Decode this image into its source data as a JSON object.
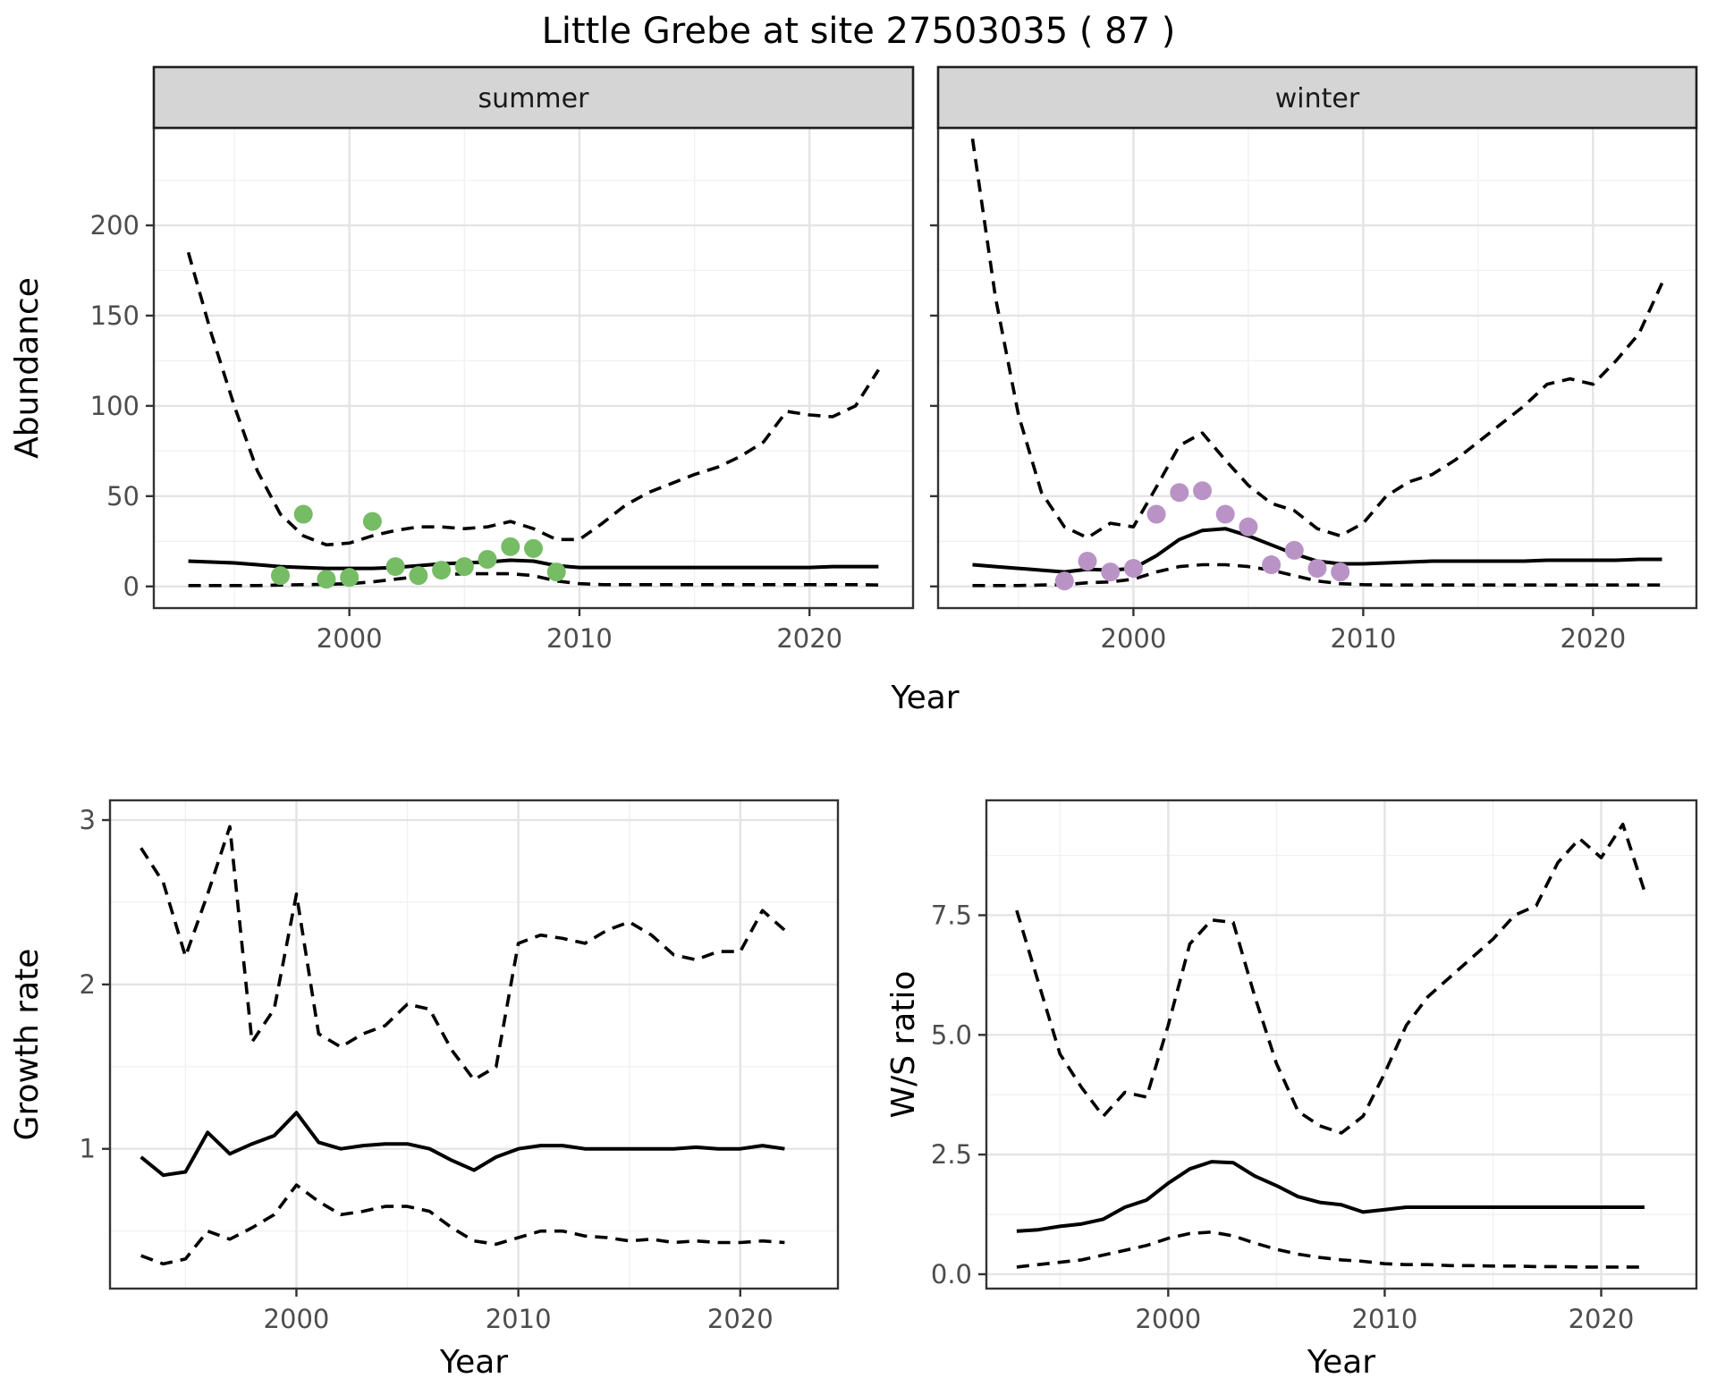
{
  "title": "Little Grebe at site 27503035 ( 87 )",
  "colors": {
    "summer_points": "#76BC64",
    "winter_points": "#BA93C6",
    "line": "#000000",
    "strip_fill": "#D5D5D5",
    "strip_border": "#1F1F1F",
    "panel_border": "#333333",
    "grid_major": "#E4E4E4",
    "grid_minor": "#F1F1F1",
    "tick_text": "#4D4D4D",
    "title_text": "#000000"
  },
  "chart_data": [
    {
      "id": "abundance-summer",
      "type": "line",
      "facet_label": "summer",
      "xlabel": "Year",
      "ylabel": "Abundance",
      "x": [
        1993,
        1994,
        1995,
        1996,
        1997,
        1998,
        1999,
        2000,
        2001,
        2002,
        2003,
        2004,
        2005,
        2006,
        2007,
        2008,
        2009,
        2010,
        2011,
        2012,
        2013,
        2014,
        2015,
        2016,
        2017,
        2018,
        2019,
        2020,
        2021,
        2022,
        2023
      ],
      "series": [
        {
          "name": "upper-95ci",
          "style": "dashed",
          "values": [
            185,
            140,
            100,
            64,
            40,
            28,
            23,
            24,
            28,
            31,
            33,
            33,
            32,
            33,
            36,
            32,
            26,
            26,
            35,
            45,
            52,
            57,
            62,
            66,
            72,
            80,
            97,
            95,
            94,
            100,
            120
          ]
        },
        {
          "name": "median",
          "style": "solid",
          "values": [
            14,
            13.5,
            13,
            12,
            11,
            10.5,
            10,
            10,
            10,
            10.5,
            11.5,
            12.5,
            13,
            13.5,
            14.5,
            14,
            11.5,
            10.5,
            10.5,
            10.5,
            10.5,
            10.5,
            10.5,
            10.5,
            10.5,
            10.5,
            10.5,
            10.5,
            11,
            11,
            11
          ]
        },
        {
          "name": "lower-95ci",
          "style": "dashed",
          "values": [
            0.5,
            0.5,
            0.5,
            0.5,
            0.8,
            1,
            1.2,
            1.5,
            2.5,
            4,
            5.5,
            6.5,
            7,
            7,
            7,
            6,
            3,
            1.5,
            1,
            1,
            1,
            1,
            1,
            1,
            1,
            1,
            1,
            1,
            1,
            1,
            0.8
          ]
        }
      ],
      "points": {
        "name": "observed-counts",
        "color": "#76BC64",
        "x": [
          1997,
          1998,
          1999,
          2000,
          2001,
          2002,
          2003,
          2004,
          2005,
          2006,
          2007,
          2008,
          2009
        ],
        "y": [
          6,
          40,
          4,
          5,
          36,
          11,
          6,
          9,
          11,
          15,
          22,
          21,
          8
        ]
      },
      "xlim": [
        1991.5,
        2024.5
      ],
      "ylim": [
        -12,
        254
      ],
      "xticks": [
        2000,
        2010,
        2020
      ],
      "xminor": [
        1995,
        2005,
        2015
      ],
      "xticklabels": [
        "2000",
        "2010",
        "2020"
      ],
      "yticks": [
        0,
        50,
        100,
        150,
        200
      ],
      "yminor": [
        25,
        75,
        125,
        175,
        225
      ],
      "yticklabels": [
        "0",
        "50",
        "100",
        "150",
        "200"
      ],
      "grid": true,
      "legend": "none"
    },
    {
      "id": "abundance-winter",
      "type": "line",
      "facet_label": "winter",
      "xlabel": "Year",
      "ylabel": "",
      "x": [
        1993,
        1994,
        1995,
        1996,
        1997,
        1998,
        1999,
        2000,
        2001,
        2002,
        2003,
        2004,
        2005,
        2006,
        2007,
        2008,
        2009,
        2010,
        2011,
        2012,
        2013,
        2014,
        2015,
        2016,
        2017,
        2018,
        2019,
        2020,
        2021,
        2022,
        2023
      ],
      "series": [
        {
          "name": "upper-95ci",
          "style": "dashed",
          "values": [
            248,
            160,
            95,
            52,
            33,
            27,
            35,
            33,
            55,
            78,
            85,
            70,
            56,
            46,
            42,
            32,
            28,
            35,
            50,
            58,
            62,
            70,
            80,
            90,
            100,
            112,
            115,
            112,
            125,
            140,
            168
          ]
        },
        {
          "name": "median",
          "style": "solid",
          "values": [
            12,
            11,
            10,
            9,
            8,
            9.5,
            9,
            10,
            17,
            26,
            31,
            32,
            28,
            23,
            18,
            14,
            12.5,
            12.5,
            13,
            13.5,
            14,
            14,
            14,
            14,
            14,
            14.5,
            14.5,
            14.5,
            14.5,
            15,
            15
          ]
        },
        {
          "name": "lower-95ci",
          "style": "dashed",
          "values": [
            0.5,
            0.5,
            0.5,
            0.8,
            1,
            2,
            2.5,
            4,
            8,
            11,
            12,
            12,
            11,
            9,
            6,
            3,
            1.5,
            1,
            0.8,
            0.8,
            0.8,
            0.8,
            0.8,
            0.8,
            0.8,
            0.8,
            0.8,
            0.8,
            0.8,
            0.8,
            0.8
          ]
        }
      ],
      "points": {
        "name": "observed-counts",
        "color": "#BA93C6",
        "x": [
          1997,
          1998,
          1999,
          2000,
          2001,
          2002,
          2003,
          2004,
          2005,
          2006,
          2007,
          2008,
          2009
        ],
        "y": [
          3,
          14,
          8,
          10,
          40,
          52,
          53,
          40,
          33,
          12,
          20,
          10,
          8
        ]
      },
      "xlim": [
        1991.5,
        2024.5
      ],
      "ylim": [
        -12,
        254
      ],
      "xticks": [
        2000,
        2010,
        2020
      ],
      "xminor": [
        1995,
        2005,
        2015
      ],
      "xticklabels": [
        "2000",
        "2010",
        "2020"
      ],
      "yticks": [
        0,
        50,
        100,
        150,
        200
      ],
      "yminor": [
        25,
        75,
        125,
        175,
        225
      ],
      "yticklabels": [],
      "grid": true,
      "legend": "none"
    },
    {
      "id": "growth-rate",
      "type": "line",
      "facet_label": "",
      "xlabel": "Year",
      "ylabel": "Growth rate",
      "x": [
        1993,
        1994,
        1995,
        1996,
        1997,
        1998,
        1999,
        2000,
        2001,
        2002,
        2003,
        2004,
        2005,
        2006,
        2007,
        2008,
        2009,
        2010,
        2011,
        2012,
        2013,
        2014,
        2015,
        2016,
        2017,
        2018,
        2019,
        2020,
        2021,
        2022
      ],
      "series": [
        {
          "name": "upper-95ci",
          "style": "dashed",
          "values": [
            2.83,
            2.62,
            2.17,
            2.55,
            2.96,
            1.65,
            1.85,
            2.55,
            1.7,
            1.62,
            1.7,
            1.75,
            1.88,
            1.85,
            1.6,
            1.42,
            1.5,
            2.25,
            2.3,
            2.28,
            2.25,
            2.33,
            2.38,
            2.3,
            2.18,
            2.15,
            2.2,
            2.2,
            2.45,
            2.33
          ]
        },
        {
          "name": "median",
          "style": "solid",
          "values": [
            0.95,
            0.84,
            0.86,
            1.1,
            0.97,
            1.03,
            1.08,
            1.22,
            1.04,
            1.0,
            1.02,
            1.03,
            1.03,
            1.0,
            0.93,
            0.87,
            0.95,
            1.0,
            1.02,
            1.02,
            1.0,
            1.0,
            1.0,
            1.0,
            1.0,
            1.01,
            1.0,
            1.0,
            1.02,
            1.0
          ]
        },
        {
          "name": "lower-95ci",
          "style": "dashed",
          "values": [
            0.35,
            0.3,
            0.33,
            0.5,
            0.45,
            0.52,
            0.6,
            0.78,
            0.68,
            0.6,
            0.62,
            0.65,
            0.65,
            0.62,
            0.52,
            0.44,
            0.42,
            0.46,
            0.5,
            0.5,
            0.47,
            0.46,
            0.44,
            0.45,
            0.43,
            0.44,
            0.43,
            0.43,
            0.44,
            0.43
          ]
        }
      ],
      "points": null,
      "xlim": [
        1991.6,
        2024.4
      ],
      "ylim": [
        0.15,
        3.12
      ],
      "xticks": [
        2000,
        2010,
        2020
      ],
      "xminor": [
        1995,
        2005,
        2015
      ],
      "xticklabels": [
        "2000",
        "2010",
        "2020"
      ],
      "yticks": [
        1,
        2,
        3
      ],
      "yminor": [
        0.5,
        1.5,
        2.5
      ],
      "yticklabels": [
        "1",
        "2",
        "3"
      ],
      "grid": true,
      "legend": "none"
    },
    {
      "id": "winter-summer-ratio",
      "type": "line",
      "facet_label": "",
      "xlabel": "Year",
      "ylabel": "W/S ratio",
      "x": [
        1993,
        1994,
        1995,
        1996,
        1997,
        1998,
        1999,
        2000,
        2001,
        2002,
        2003,
        2004,
        2005,
        2006,
        2007,
        2008,
        2009,
        2010,
        2011,
        2012,
        2013,
        2014,
        2015,
        2016,
        2017,
        2018,
        2019,
        2020,
        2021,
        2022
      ],
      "series": [
        {
          "name": "upper-95ci",
          "style": "dashed",
          "values": [
            7.6,
            6.1,
            4.6,
            3.9,
            3.3,
            3.8,
            3.7,
            5.2,
            6.9,
            7.4,
            7.35,
            5.8,
            4.4,
            3.4,
            3.1,
            2.95,
            3.3,
            4.2,
            5.2,
            5.8,
            6.2,
            6.6,
            7.0,
            7.5,
            7.7,
            8.6,
            9.1,
            8.7,
            9.4,
            8.0
          ]
        },
        {
          "name": "median",
          "style": "solid",
          "values": [
            0.9,
            0.93,
            1.0,
            1.05,
            1.15,
            1.4,
            1.55,
            1.9,
            2.2,
            2.35,
            2.33,
            2.05,
            1.85,
            1.62,
            1.5,
            1.45,
            1.3,
            1.35,
            1.4,
            1.4,
            1.4,
            1.4,
            1.4,
            1.4,
            1.4,
            1.4,
            1.4,
            1.4,
            1.4,
            1.4
          ]
        },
        {
          "name": "lower-95ci",
          "style": "dashed",
          "values": [
            0.15,
            0.2,
            0.25,
            0.3,
            0.4,
            0.5,
            0.6,
            0.75,
            0.85,
            0.88,
            0.8,
            0.65,
            0.52,
            0.42,
            0.35,
            0.3,
            0.27,
            0.22,
            0.2,
            0.2,
            0.18,
            0.18,
            0.17,
            0.17,
            0.16,
            0.16,
            0.15,
            0.15,
            0.15,
            0.15
          ]
        }
      ],
      "points": null,
      "xlim": [
        1991.6,
        2024.4
      ],
      "ylim": [
        -0.3,
        9.9
      ],
      "xticks": [
        2000,
        2010,
        2020
      ],
      "xminor": [
        1995,
        2005,
        2015
      ],
      "xticklabels": [
        "2000",
        "2010",
        "2020"
      ],
      "yticks": [
        0,
        2.5,
        5,
        7.5
      ],
      "yminor": [
        1.25,
        3.75,
        6.25,
        8.75
      ],
      "yticklabels": [
        "0.0",
        "2.5",
        "5.0",
        "7.5"
      ],
      "grid": true,
      "legend": "none"
    }
  ]
}
